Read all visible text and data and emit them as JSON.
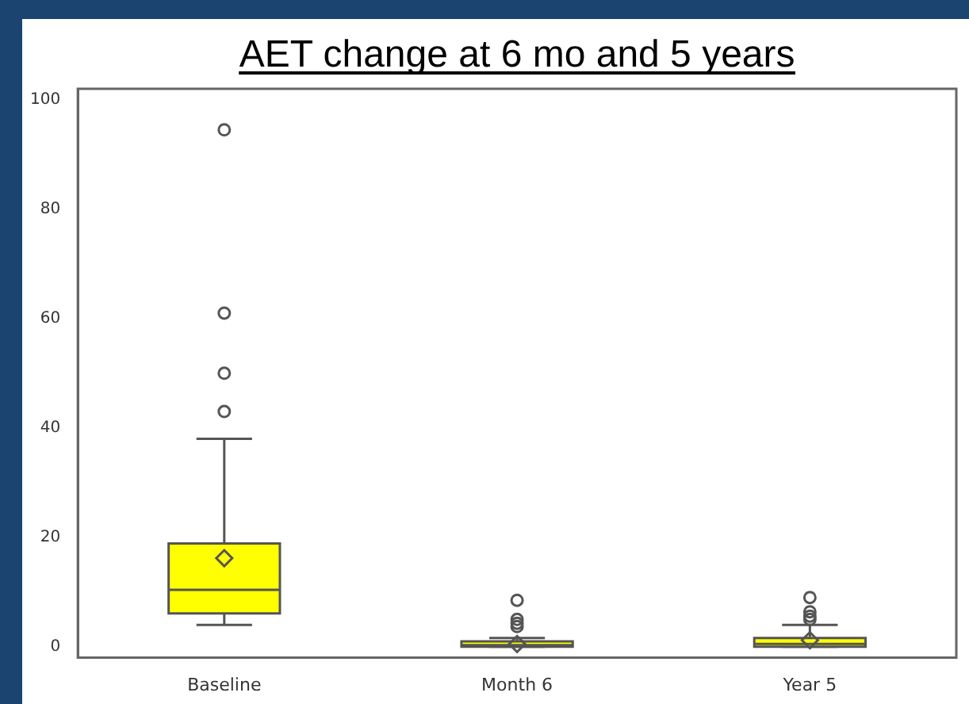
{
  "chart_data": {
    "type": "box",
    "title": "AET change at 6 mo and 5 years",
    "categories": [
      "Baseline",
      "Month 6",
      "Year 5"
    ],
    "color": "#ffff00",
    "boxes": [
      {
        "low": 4,
        "q1": 6.1,
        "median": 10.4,
        "q3": 18.9,
        "high": 38,
        "mean": 16.2,
        "outliers": [
          43,
          50,
          61,
          94.5
        ]
      },
      {
        "low": 0,
        "q1": 0,
        "median": 0.3,
        "q3": 1,
        "high": 1.6,
        "mean": 0.5,
        "outliers": [
          3.7,
          4.3,
          5,
          8.5
        ]
      },
      {
        "low": 0,
        "q1": 0,
        "median": 0.5,
        "q3": 1.6,
        "high": 4,
        "mean": 1.2,
        "outliers": [
          5,
          5.6,
          6.4,
          9
        ]
      }
    ],
    "ylim": [
      -2,
      102
    ],
    "yticks": [
      0,
      20,
      40,
      60,
      80,
      100
    ],
    "grid": false,
    "legend": false
  }
}
